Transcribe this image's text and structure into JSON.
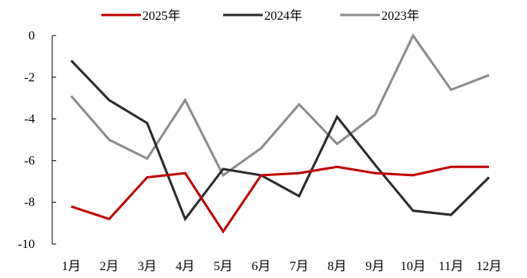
{
  "chart_data": {
    "type": "line",
    "categories": [
      "1月",
      "2月",
      "3月",
      "4月",
      "5月",
      "6月",
      "7月",
      "8月",
      "9月",
      "10月",
      "11月",
      "12月"
    ],
    "series": [
      {
        "name": "2025年",
        "color": "#c00000",
        "values": [
          -8.2,
          -8.8,
          -6.8,
          -6.6,
          -9.4,
          -6.7,
          -6.6,
          -6.3,
          -6.6,
          -6.7,
          -6.3,
          -6.3
        ]
      },
      {
        "name": "2024年",
        "color": "#2b2b2b",
        "values": [
          -1.2,
          -3.1,
          -4.2,
          -8.8,
          -6.4,
          -6.7,
          -7.7,
          -3.9,
          -6.2,
          -8.4,
          -8.6,
          -6.8
        ]
      },
      {
        "name": "2023年",
        "color": "#8c8c8c",
        "values": [
          -2.9,
          -5.0,
          -5.9,
          -3.1,
          -6.7,
          -5.4,
          -3.3,
          -5.2,
          -3.8,
          0.0,
          -2.6,
          -1.9
        ]
      }
    ],
    "ylim": [
      -10,
      0
    ],
    "yticks": [
      "0",
      "-2",
      "-4",
      "-6",
      "-8",
      "-10"
    ],
    "legend_position": "top-center",
    "grid": false
  }
}
